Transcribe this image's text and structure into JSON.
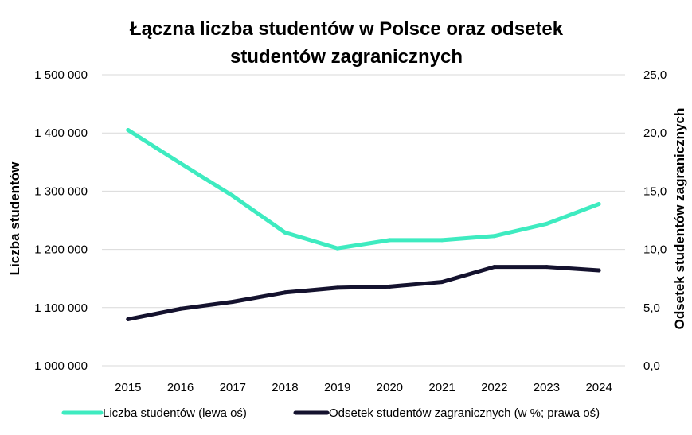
{
  "chart_data": {
    "type": "line",
    "title_line1": "Łączna liczba studentów w Polsce oraz odsetek",
    "title_line2": "studentów zagranicznych",
    "categories": [
      "2015",
      "2016",
      "2017",
      "2018",
      "2019",
      "2020",
      "2021",
      "2022",
      "2023",
      "2024"
    ],
    "y_left": {
      "label": "Liczba studentów",
      "range": [
        1000000,
        1500000
      ],
      "ticks": [
        "1 000 000",
        "1 100 000",
        "1 200 000",
        "1 300 000",
        "1 400 000",
        "1 500 000"
      ],
      "grid": true
    },
    "y_right": {
      "label": "Odsetek studentów zagranicznych",
      "range": [
        0,
        25
      ],
      "ticks": [
        "0,0",
        "5,0",
        "10,0",
        "15,0",
        "20,0",
        "25,0"
      ]
    },
    "series": [
      {
        "name": "Liczba studentów (lewa oś)",
        "axis": "left",
        "color": "#3EEBC0",
        "values": [
          1405000,
          1348000,
          1292000,
          1229000,
          1202000,
          1216000,
          1216000,
          1223000,
          1244000,
          1278000
        ]
      },
      {
        "name": "Odsetek studentów zagranicznych (w %; prawa oś)",
        "axis": "right",
        "color": "#14122E",
        "values": [
          4.0,
          4.9,
          5.5,
          6.3,
          6.7,
          6.8,
          7.2,
          8.5,
          8.5,
          8.2
        ]
      }
    ],
    "legend_position": "bottom"
  }
}
